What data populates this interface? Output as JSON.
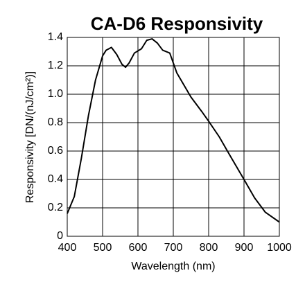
{
  "chart_data": {
    "type": "line",
    "title": "CA-D6 Responsivity",
    "xlabel": "Wavelength (nm)",
    "ylabel": "Responsivity [DN/(nJ/cm²)]",
    "x": [
      400,
      420,
      440,
      460,
      480,
      500,
      510,
      525,
      540,
      555,
      565,
      575,
      590,
      610,
      625,
      640,
      655,
      670,
      690,
      710,
      750,
      780,
      800,
      830,
      860,
      900,
      930,
      960,
      1000
    ],
    "series": [
      {
        "name": "Responsivity",
        "color": "#000000",
        "values": [
          0.16,
          0.28,
          0.55,
          0.85,
          1.1,
          1.27,
          1.31,
          1.33,
          1.28,
          1.21,
          1.19,
          1.22,
          1.29,
          1.32,
          1.38,
          1.39,
          1.36,
          1.31,
          1.29,
          1.15,
          0.98,
          0.88,
          0.81,
          0.7,
          0.57,
          0.4,
          0.27,
          0.17,
          0.1
        ]
      }
    ],
    "xlim": [
      400,
      1000
    ],
    "xticks": [
      400,
      500,
      600,
      700,
      800,
      900,
      1000
    ],
    "ylim": [
      0,
      1.4
    ],
    "yticks": [
      0,
      0.2,
      0.4,
      0.6,
      0.8,
      {
        "value": 1,
        "label": "1.0"
      },
      1.2,
      1.4
    ],
    "grid": true
  }
}
